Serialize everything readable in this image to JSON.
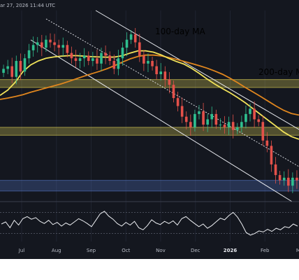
{
  "header": {
    "timestamp": "ar 27, 2026 11:44 UTC"
  },
  "chart_data": {
    "type": "line",
    "title": "",
    "xlabel": "",
    "ylabel": "",
    "x_ticks": [
      {
        "label": "Jul",
        "bold": false
      },
      {
        "label": "Aug",
        "bold": false
      },
      {
        "label": "Sep",
        "bold": false
      },
      {
        "label": "Oct",
        "bold": false
      },
      {
        "label": "Nov",
        "bold": false
      },
      {
        "label": "Dec",
        "bold": false
      },
      {
        "label": "2026",
        "bold": true
      },
      {
        "label": "Feb",
        "bold": false
      },
      {
        "label": "Ma",
        "bold": false
      }
    ],
    "annotations": [
      {
        "text": "100-day MA",
        "color": "#f2e35a"
      },
      {
        "text": "200-day M",
        "color": "#f2a23a"
      }
    ],
    "price_series": {
      "name": "",
      "values": [
        108,
        109,
        105,
        111,
        107,
        112,
        115,
        117,
        118,
        116,
        119,
        118,
        117,
        116,
        117,
        114,
        112,
        111,
        112,
        113,
        111,
        112,
        110,
        114,
        113,
        111,
        108,
        112,
        116,
        119,
        121,
        118,
        113,
        110,
        111,
        109,
        106,
        107,
        104,
        102,
        97,
        94,
        90,
        88,
        86,
        91,
        92,
        87,
        89,
        91,
        87,
        87,
        86,
        88,
        85,
        86,
        88,
        91,
        93,
        89,
        88,
        81,
        79,
        72,
        68,
        66,
        67,
        64,
        67,
        66
      ]
    },
    "ma100": {
      "name": "100-day MA",
      "color": "#f2e35a",
      "values": [
        98,
        100,
        103,
        107,
        109.5,
        111,
        112,
        112.5,
        112.8,
        113,
        113,
        112.8,
        112.6,
        112.5,
        112.4,
        112.5,
        113,
        114,
        114.8,
        114.8,
        114.3,
        113.3,
        112,
        110.8,
        109.8,
        108.2,
        106.3,
        104.2,
        102.3,
        100.6,
        99,
        97.2,
        95.2,
        93,
        90.8,
        88.6,
        86.4,
        84.2,
        82.5,
        81.5
      ]
    },
    "ma200": {
      "name": "200-day MA",
      "color": "#e0861e",
      "values": [
        96.5,
        97,
        97.6,
        98.3,
        99.2,
        100,
        100.8,
        101.6,
        102.4,
        103.3,
        104.3,
        105.3,
        106.2,
        107.1,
        108.1,
        109.3,
        110.6,
        111.8,
        112.7,
        113.2,
        113.2,
        112.9,
        112.3,
        111.6,
        110.8,
        110,
        109.2,
        108.3,
        107.2,
        106,
        104.5,
        102.8,
        101,
        99.3,
        97.6,
        95.8,
        94,
        92.4,
        91.2,
        90.6
      ]
    },
    "zones": [
      {
        "kind": "resistance",
        "color": "#f2e35a",
        "low": 101,
        "high": 104
      },
      {
        "kind": "support",
        "color": "#f2e35a",
        "low": 83,
        "high": 86
      },
      {
        "kind": "support",
        "color": "#5b7fd4",
        "low": 62,
        "high": 66
      }
    ],
    "ylim": [
      58,
      130
    ],
    "rsi": {
      "name": "",
      "values": [
        48,
        52,
        41,
        55,
        46,
        58,
        62,
        57,
        60,
        53,
        49,
        55,
        47,
        51,
        44,
        50,
        46,
        52,
        58,
        54,
        49,
        43,
        55,
        67,
        72,
        63,
        57,
        49,
        44,
        51,
        46,
        53,
        41,
        37,
        45,
        56,
        50,
        47,
        53,
        49,
        54,
        46,
        58,
        62,
        55,
        49,
        43,
        48,
        40,
        45,
        52,
        59,
        56,
        64,
        70,
        61,
        48,
        32,
        27,
        30,
        35,
        33,
        38,
        34,
        40,
        37,
        43,
        41,
        48,
        44
      ],
      "levels": [
        70,
        30
      ],
      "ylim": [
        15,
        85
      ]
    }
  }
}
